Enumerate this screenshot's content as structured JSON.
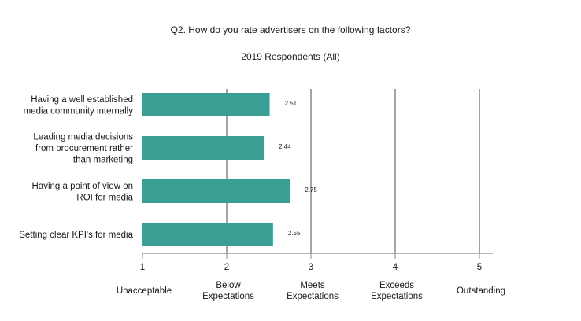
{
  "chart_data": {
    "type": "bar",
    "orientation": "horizontal",
    "title": "Q2. How do you rate advertisers on the following factors?",
    "subtitle": "2019 Respondents (All)",
    "categories": [
      [
        "Having a well established",
        "media community internally"
      ],
      [
        "Leading media decisions",
        "from procurement rather",
        "than marketing"
      ],
      [
        "Having a point of view on",
        "ROI for media"
      ],
      [
        "Setting clear KPI's for media"
      ]
    ],
    "values": [
      2.51,
      2.44,
      2.75,
      2.55
    ],
    "data_labels": [
      "2.51",
      "2.44",
      "2.75",
      "2.55"
    ],
    "xlim": [
      1,
      5
    ],
    "ticks": [
      "1",
      "2",
      "3",
      "4",
      "5"
    ],
    "tick_descriptions": [
      [
        "Unacceptable"
      ],
      [
        "Below",
        "Expectations"
      ],
      [
        "Meets",
        "Expectations"
      ],
      [
        "Exceeds",
        "Expectations"
      ],
      [
        "Outstanding"
      ]
    ],
    "bar_color": "#3a9e94",
    "grid": true,
    "legend": "none"
  }
}
